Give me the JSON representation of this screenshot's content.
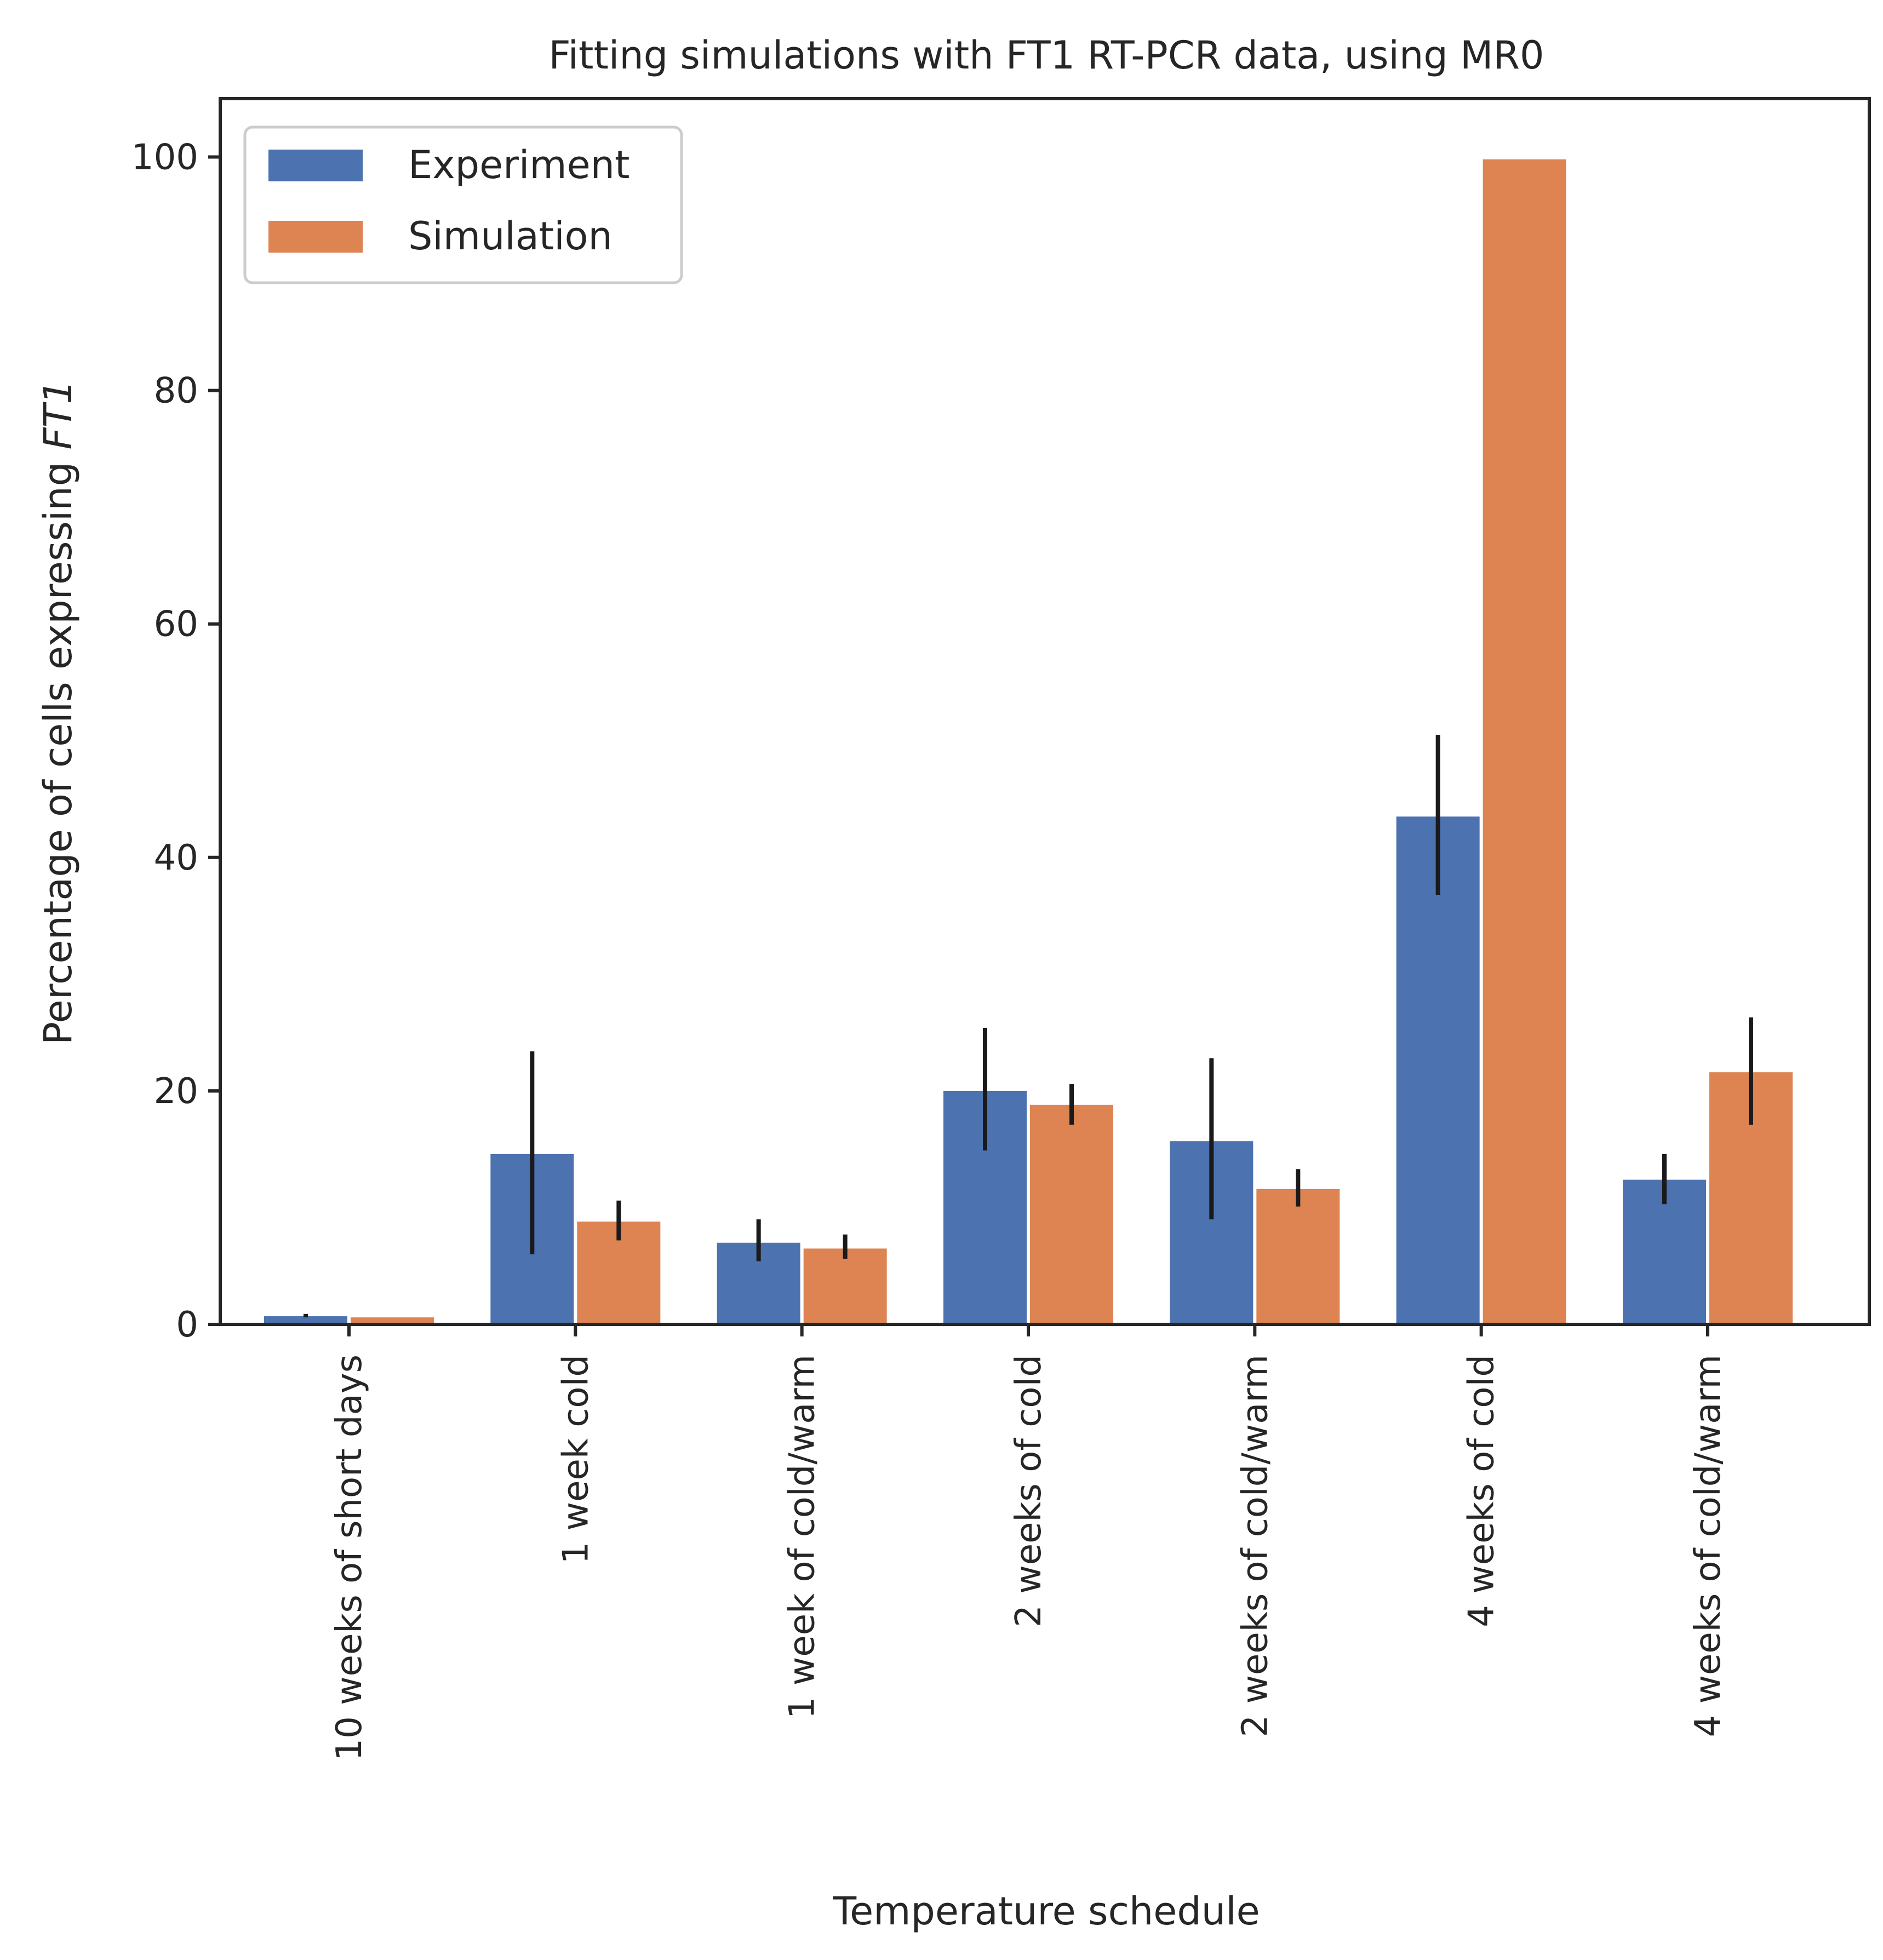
{
  "chart_data": {
    "type": "bar",
    "title": "Fitting simulations with FT1 RT-PCR data, using MR0",
    "xlabel": "Temperature schedule",
    "ylabel_prefix": "Percentage of cells expressing ",
    "ylabel_italic": "FT1",
    "ylim": [
      0,
      105
    ],
    "yticks": [
      0,
      20,
      40,
      60,
      80,
      100
    ],
    "grid": false,
    "legend_position": "top-left",
    "categories": [
      "10 weeks of short days",
      "1 week cold",
      "1 week of cold/warm",
      "2 weeks of cold",
      "2 weeks of cold/warm",
      "4 weeks of cold",
      "4 weeks of cold/warm"
    ],
    "series": [
      {
        "name": "Experiment",
        "color": "#4c72b0",
        "values": [
          0.7,
          14.6,
          7.0,
          20.0,
          15.7,
          43.5,
          12.4
        ],
        "err_low": [
          0.6,
          6.0,
          5.4,
          14.9,
          9.0,
          36.8,
          10.3
        ],
        "err_high": [
          0.9,
          23.4,
          9.0,
          25.4,
          22.8,
          50.5,
          14.6
        ]
      },
      {
        "name": "Simulation",
        "color": "#dd8452",
        "values": [
          0.6,
          8.8,
          6.5,
          18.8,
          11.6,
          99.8,
          21.6
        ],
        "err_low": [
          null,
          7.2,
          5.6,
          17.1,
          10.1,
          null,
          17.1
        ],
        "err_high": [
          null,
          10.6,
          7.7,
          20.6,
          13.3,
          null,
          26.3
        ]
      }
    ]
  }
}
